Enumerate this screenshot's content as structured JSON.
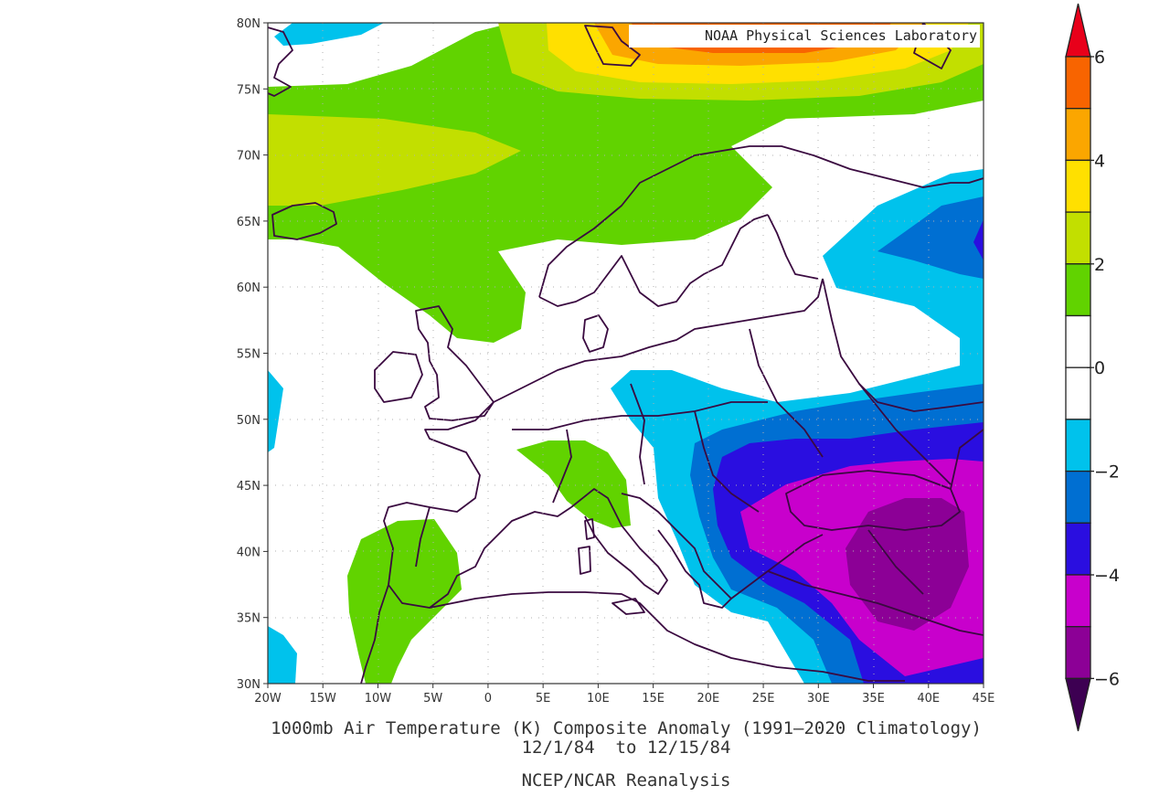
{
  "credit": "NOAA Physical Sciences Laboratory",
  "caption": {
    "title": "1000mb Air Temperature (K) Composite Anomaly (1991–2020 Climatology)",
    "dates": "12/1/84  to 12/15/84",
    "source": "NCEP/NCAR Reanalysis"
  },
  "map": {
    "lon_range": [
      -20,
      45
    ],
    "lat_range": [
      30,
      80
    ],
    "lon_ticks": [
      "20W",
      "15W",
      "10W",
      "5W",
      "0",
      "5E",
      "10E",
      "15E",
      "20E",
      "25E",
      "30E",
      "35E",
      "40E",
      "45E"
    ],
    "lat_ticks": [
      "30N",
      "35N",
      "40N",
      "45N",
      "50N",
      "55N",
      "60N",
      "65N",
      "70N",
      "75N",
      "80N"
    ]
  },
  "colorbar": {
    "labels": [
      "6",
      "4",
      "2",
      "0",
      "−2",
      "−4",
      "−6"
    ],
    "colors": {
      "gt6": "#e8001a",
      "c5_6": "#f86400",
      "c4_5": "#fba600",
      "c3_4": "#ffe000",
      "c2_3": "#c2df00",
      "c1_2": "#61d300",
      "c0_1": "#ffffff",
      "cm1_0": "#ffffff",
      "cm2_m1": "#00c2ec",
      "cm3_m2": "#006fd2",
      "cm4_m3": "#2a0ee0",
      "cm5_m4": "#c800cc",
      "cm6_m5": "#8c0096",
      "ltm6": "#3d0052"
    }
  }
}
